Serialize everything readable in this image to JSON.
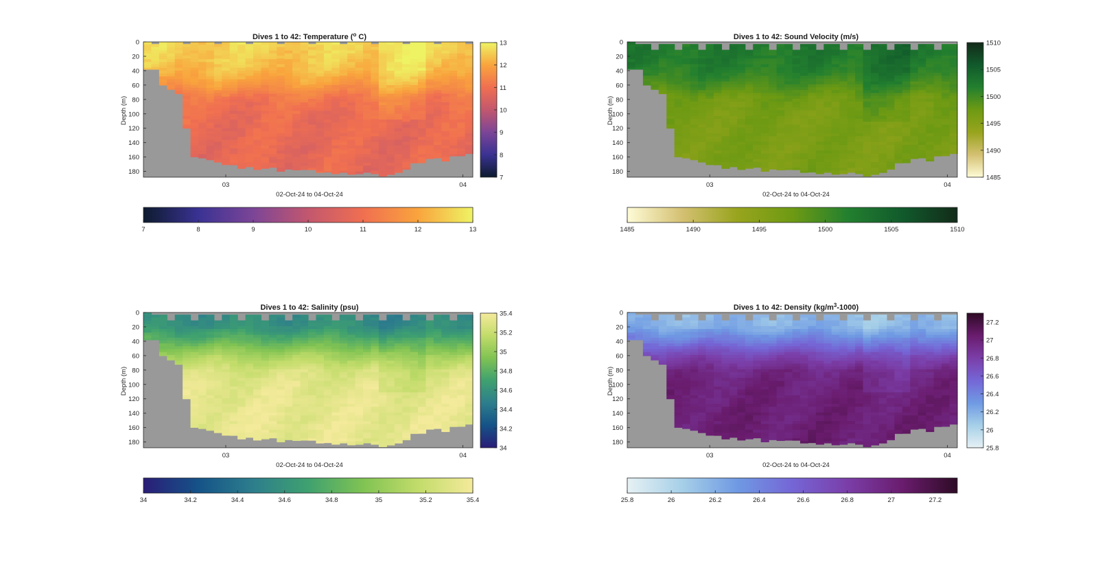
{
  "figure": {
    "background": "#ffffff",
    "axes_background": "#999999"
  },
  "chart_data": [
    {
      "type": "heatmap",
      "title": "Dives 1 to 42: Temperature (° C)",
      "title_parts": [
        "Dives 1 to 42: Temperature (",
        "o",
        " C)"
      ],
      "variable": "temperature",
      "xlabel": "02-Oct-24 to 04-Oct-24",
      "ylabel": "Depth (m)",
      "x_ticks": [
        "03",
        "04"
      ],
      "y_ticks": [
        "0",
        "20",
        "40",
        "60",
        "80",
        "100",
        "120",
        "140",
        "160",
        "180"
      ],
      "ylim": [
        0,
        188
      ],
      "y_reversed": true,
      "dives": 42,
      "clim": [
        7,
        13
      ],
      "colorbar_ticks": [
        "7",
        "8",
        "9",
        "10",
        "11",
        "12",
        "13"
      ],
      "colormap": [
        "#0d1b2e",
        "#3a3293",
        "#7c4597",
        "#c2576e",
        "#f06f51",
        "#f9a43d",
        "#eef364"
      ],
      "approx_profile": {
        "depth": [
          0,
          20,
          40,
          60,
          80,
          100,
          140,
          180
        ],
        "value": [
          12.6,
          12.5,
          12.3,
          11.8,
          11.1,
          10.9,
          10.8,
          10.8
        ]
      }
    },
    {
      "type": "heatmap",
      "title": "Dives 1 to 42: Sound Velocity (m/s)",
      "variable": "sound_velocity",
      "xlabel": "02-Oct-24 to 04-Oct-24",
      "ylabel": "Depth (m)",
      "x_ticks": [
        "03",
        "04"
      ],
      "y_ticks": [
        "0",
        "20",
        "40",
        "60",
        "80",
        "100",
        "120",
        "140",
        "160",
        "180"
      ],
      "ylim": [
        0,
        188
      ],
      "y_reversed": true,
      "dives": 42,
      "clim": [
        1485,
        1510
      ],
      "colorbar_ticks": [
        "1485",
        "1490",
        "1495",
        "1500",
        "1505",
        "1510"
      ],
      "colormap": [
        "#fefbd6",
        "#d4c072",
        "#98a41d",
        "#6e9a13",
        "#23802f",
        "#115a2c",
        "#132b19"
      ],
      "approx_profile": {
        "depth": [
          0,
          20,
          40,
          60,
          80,
          100,
          140,
          180
        ],
        "value": [
          1502.5,
          1502.3,
          1501.5,
          1499.5,
          1497.0,
          1496.4,
          1496.2,
          1496.3
        ]
      }
    },
    {
      "type": "heatmap",
      "title": "Dives 1 to 42: Salinity (psu)",
      "variable": "salinity",
      "xlabel": "02-Oct-24 to 04-Oct-24",
      "ylabel": "Depth (m)",
      "x_ticks": [
        "03",
        "04"
      ],
      "y_ticks": [
        "0",
        "20",
        "40",
        "60",
        "80",
        "100",
        "120",
        "140",
        "160",
        "180"
      ],
      "ylim": [
        0,
        188
      ],
      "y_reversed": true,
      "dives": 42,
      "clim": [
        34,
        35.4
      ],
      "colorbar_ticks": [
        "34",
        "34.2",
        "34.4",
        "34.6",
        "34.8",
        "35",
        "35.2",
        "35.4"
      ],
      "colormap": [
        "#2a1d77",
        "#155388",
        "#2d7e8c",
        "#3fa16f",
        "#80c353",
        "#c2dc6a",
        "#f4ea9b"
      ],
      "approx_profile": {
        "depth": [
          0,
          20,
          40,
          60,
          80,
          100,
          140,
          180
        ],
        "value": [
          34.55,
          34.6,
          34.82,
          35.08,
          35.26,
          35.32,
          35.34,
          35.34
        ]
      }
    },
    {
      "type": "heatmap",
      "title": "Dives 1 to 42: Density (kg/m³-1000)",
      "title_parts": [
        "Dives 1 to 42: Density (kg/m",
        "3",
        "-1000)"
      ],
      "variable": "density",
      "xlabel": "02-Oct-24 to 04-Oct-24",
      "ylabel": "Depth (m)",
      "x_ticks": [
        "03",
        "04"
      ],
      "y_ticks": [
        "0",
        "20",
        "40",
        "60",
        "80",
        "100",
        "120",
        "140",
        "160",
        "180"
      ],
      "ylim": [
        0,
        188
      ],
      "y_reversed": true,
      "dives": 42,
      "clim": [
        25.8,
        27.3
      ],
      "colorbar_ticks": [
        "25.8",
        "26",
        "26.2",
        "26.4",
        "26.6",
        "26.8",
        "27",
        "27.2"
      ],
      "colormap": [
        "#e6f1f4",
        "#a6cfe8",
        "#6f9ae3",
        "#7566d6",
        "#7b3ea8",
        "#6a1c6e",
        "#2e0b25"
      ],
      "approx_profile": {
        "depth": [
          0,
          20,
          40,
          60,
          80,
          100,
          140,
          180
        ],
        "value": [
          26.15,
          26.2,
          26.45,
          26.75,
          26.95,
          27.0,
          27.02,
          27.03
        ]
      }
    }
  ]
}
